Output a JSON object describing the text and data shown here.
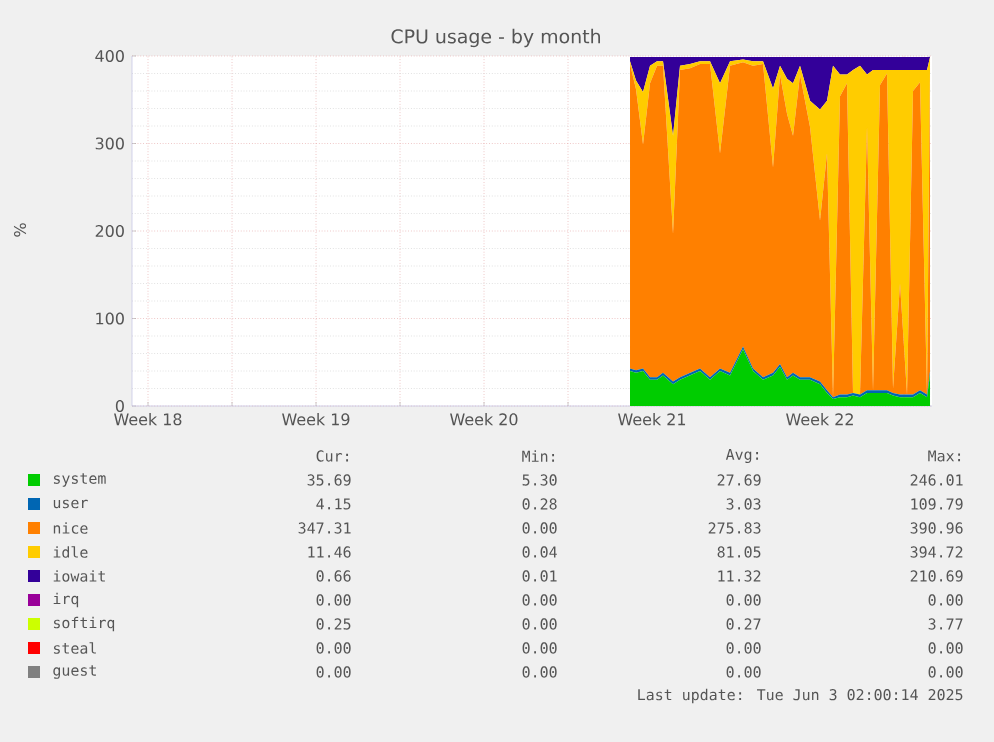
{
  "chart_data": {
    "type": "area",
    "title": "CPU usage - by month",
    "ylabel": "%",
    "stacked": true,
    "grid": true,
    "legend": "bottom",
    "xlim": [
      "2025-04-30T20:00",
      "2025-06-03T04:00"
    ],
    "ylim": [
      0,
      400
    ],
    "yticks": [
      0,
      100,
      200,
      300,
      400
    ],
    "xticks": [
      {
        "value": "2025-05-01T12:00",
        "label": "Week 18"
      },
      {
        "value": "2025-05-05T00:00",
        "label": null
      },
      {
        "value": "2025-05-08T12:00",
        "label": "Week 19"
      },
      {
        "value": "2025-05-12T00:00",
        "label": null
      },
      {
        "value": "2025-05-15T12:00",
        "label": "Week 20"
      },
      {
        "value": "2025-05-19T00:00",
        "label": null
      },
      {
        "value": "2025-05-22T12:00",
        "label": "Week 21"
      },
      {
        "value": "2025-05-26T00:00",
        "label": null
      },
      {
        "value": "2025-05-29T12:00",
        "label": "Week 22"
      },
      {
        "value": "2025-06-02T00:00",
        "label": null
      }
    ],
    "x": [
      "2025-05-21T14:00",
      "2025-05-21T20:00",
      "2025-05-22T03:00",
      "2025-05-22T10:00",
      "2025-05-22T17:00",
      "2025-05-22T23:00",
      "2025-05-23T09:00",
      "2025-05-23T16:00",
      "2025-05-24T02:00",
      "2025-05-24T12:00",
      "2025-05-24T22:00",
      "2025-05-25T08:00",
      "2025-05-25T18:00",
      "2025-05-26T07:00",
      "2025-05-26T17:00",
      "2025-05-27T03:00",
      "2025-05-27T13:00",
      "2025-05-27T20:00",
      "2025-05-28T03:00",
      "2025-05-28T09:00",
      "2025-05-28T16:00",
      "2025-05-29T02:00",
      "2025-05-29T12:00",
      "2025-05-29T19:00",
      "2025-05-30T01:00",
      "2025-05-30T08:00",
      "2025-05-30T15:00",
      "2025-05-30T21:00",
      "2025-05-31T04:00",
      "2025-05-31T11:00",
      "2025-05-31T17:00",
      "2025-06-01T00:00",
      "2025-06-01T07:00",
      "2025-06-01T13:00",
      "2025-06-01T20:00",
      "2025-06-02T03:00",
      "2025-06-02T09:00",
      "2025-06-02T16:00",
      "2025-06-02T23:00",
      "2025-06-03T02:00"
    ],
    "series": [
      {
        "name": "system",
        "color": "#00cc00",
        "values": [
          40,
          38,
          40,
          30,
          30,
          35,
          25,
          30,
          35,
          40,
          30,
          40,
          35,
          65,
          40,
          30,
          35,
          45,
          30,
          35,
          30,
          30,
          25,
          15,
          8,
          10,
          10,
          12,
          10,
          15,
          15,
          15,
          15,
          12,
          10,
          10,
          10,
          15,
          10,
          35.69
        ]
      },
      {
        "name": "user",
        "color": "#0066b3",
        "values": [
          3,
          3,
          3,
          3,
          3,
          3,
          3,
          3,
          3,
          3,
          3,
          3,
          3,
          3,
          3,
          3,
          3,
          3,
          3,
          3,
          3,
          3,
          3,
          3,
          2,
          3,
          3,
          3,
          3,
          3,
          3,
          3,
          3,
          3,
          3,
          3,
          3,
          3,
          3,
          4.15
        ]
      },
      {
        "name": "nice",
        "color": "#ff8000",
        "values": [
          348,
          321,
          256,
          336,
          356,
          351,
          169,
          351,
          348,
          348,
          358,
          246,
          351,
          325,
          346,
          358,
          235,
          331,
          301,
          271,
          346,
          286,
          184,
          271,
          0,
          341,
          356,
          0,
          0,
          301,
          0,
          349,
          362,
          5,
          127,
          0,
          347,
          352,
          0,
          347.31
        ]
      },
      {
        "name": "idle",
        "color": "#ffcc00",
        "values": [
          3,
          10,
          60,
          20,
          5,
          5,
          112,
          5,
          5,
          3,
          3,
          80,
          5,
          3,
          5,
          3,
          90,
          10,
          40,
          60,
          10,
          30,
          127,
          60,
          379,
          25,
          10,
          369,
          376,
          60,
          366,
          17,
          4,
          364,
          244,
          371,
          24,
          14,
          371,
          11.46
        ]
      },
      {
        "name": "iowait",
        "color": "#330099",
        "values": [
          5,
          27,
          40,
          10,
          5,
          5,
          90,
          10,
          8,
          5,
          5,
          30,
          5,
          3,
          5,
          5,
          36,
          10,
          25,
          30,
          10,
          50,
          60,
          50,
          10,
          20,
          20,
          15,
          10,
          20,
          15,
          15,
          15,
          15,
          15,
          15,
          15,
          15,
          15,
          0.66
        ]
      },
      {
        "name": "irq",
        "color": "#990099",
        "values": [
          null,
          null,
          null,
          null,
          null,
          null,
          null,
          null,
          null,
          null,
          null,
          null,
          null,
          null,
          null,
          null,
          null,
          null,
          null,
          null,
          null,
          null,
          null,
          null,
          null,
          null,
          null,
          null,
          null,
          null,
          null,
          null,
          null,
          null,
          null,
          null,
          null,
          null,
          null,
          null
        ]
      },
      {
        "name": "softirq",
        "color": "#ccff00",
        "values": [
          null,
          null,
          null,
          null,
          null,
          null,
          null,
          null,
          null,
          null,
          null,
          null,
          null,
          null,
          null,
          null,
          null,
          null,
          null,
          null,
          null,
          null,
          null,
          null,
          null,
          null,
          null,
          null,
          null,
          null,
          null,
          null,
          null,
          null,
          null,
          null,
          null,
          null,
          null,
          null
        ]
      },
      {
        "name": "steal",
        "color": "#ff0000",
        "values": [
          null,
          null,
          null,
          null,
          null,
          null,
          null,
          null,
          null,
          null,
          null,
          null,
          null,
          null,
          null,
          null,
          null,
          null,
          null,
          null,
          null,
          null,
          null,
          null,
          null,
          null,
          null,
          null,
          null,
          null,
          null,
          null,
          null,
          null,
          null,
          null,
          null,
          null,
          null,
          null
        ]
      },
      {
        "name": "guest",
        "color": "#808080",
        "values": [
          null,
          null,
          null,
          null,
          null,
          null,
          null,
          null,
          null,
          null,
          null,
          null,
          null,
          null,
          null,
          null,
          null,
          null,
          null,
          null,
          null,
          null,
          null,
          null,
          null,
          null,
          null,
          null,
          null,
          null,
          null,
          null,
          null,
          null,
          null,
          null,
          null,
          null,
          null,
          null
        ]
      }
    ],
    "annotations": [
      "Cur:",
      "Min:",
      "Avg:",
      "Max:",
      "35.69",
      "5.30",
      "27.69",
      "246.01",
      "4.15",
      "0.28",
      "3.03",
      "109.79",
      "347.31",
      "0.00",
      "275.83",
      "390.96",
      "11.46",
      "0.04",
      "81.05",
      "394.72",
      "0.66",
      "0.01",
      "11.32",
      "210.69",
      "0.00",
      "0.00",
      "0.00",
      "0.00",
      "0.25",
      "0.00",
      "0.27",
      "3.77",
      "0.00",
      "0.00",
      "0.00",
      "0.00",
      "0.00",
      "0.00",
      "0.00",
      "0.00",
      "Last update: Tue Jun 3 02:00:14 2025"
    ]
  }
}
